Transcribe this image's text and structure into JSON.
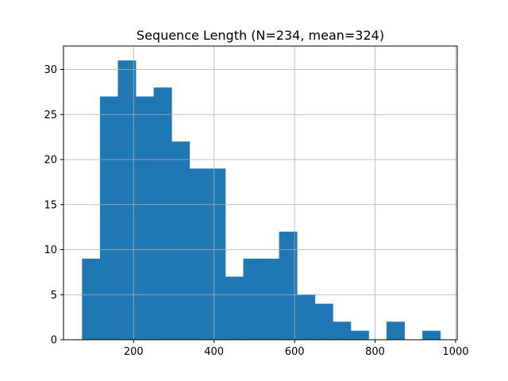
{
  "chart_data": {
    "type": "bar",
    "title": "Sequence Length (N=234, mean=324)",
    "xlabel": "",
    "ylabel": "",
    "xlim": [
      26,
      1004
    ],
    "ylim": [
      0,
      32.6
    ],
    "grid": true,
    "x_ticks": [
      200,
      400,
      600,
      800,
      1000
    ],
    "y_ticks": [
      0,
      5,
      10,
      15,
      20,
      25,
      30
    ],
    "bin_edges": [
      72,
      116.5,
      161,
      205.5,
      250,
      294.5,
      339,
      383.5,
      428,
      472.5,
      517,
      561.5,
      606,
      650.5,
      695,
      739.5,
      784,
      828.5,
      873,
      917.5,
      962
    ],
    "values": [
      9,
      27,
      31,
      27,
      28,
      22,
      19,
      19,
      7,
      9,
      9,
      12,
      5,
      4,
      2,
      1,
      0,
      2,
      0,
      1
    ],
    "bar_color": "#1f77b4"
  }
}
